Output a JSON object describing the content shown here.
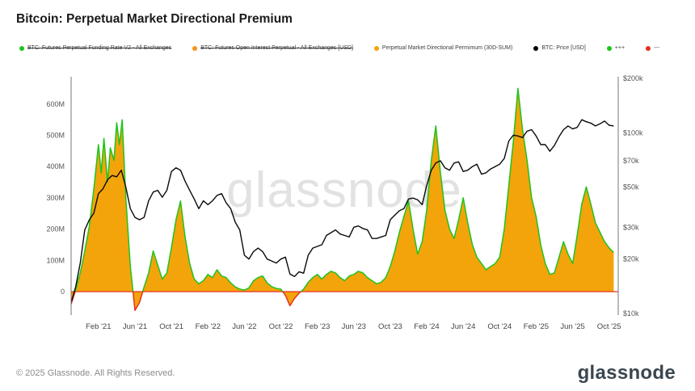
{
  "page": {
    "title": "Bitcoin: Perpetual Market Directional Premium",
    "watermark": "glassnode",
    "footer_copyright": "© 2025 Glassnode. All Rights Reserved.",
    "brand": "glassnode"
  },
  "legend": [
    {
      "label": "BTC: Futures Perpetual Funding Rate V2 - All Exchanges",
      "color": "#1ec31e",
      "strikethrough": true
    },
    {
      "label": "BTC: Futures Open Interest Perpetual - All Exchanges [USD]",
      "color": "#f7931a",
      "strikethrough": true
    },
    {
      "label": "Perpetual Market Directional Permimum (30D-SUM)",
      "color": "#f3a40a",
      "strikethrough": false
    },
    {
      "label": "BTC: Price [USD]",
      "color": "#000000",
      "strikethrough": false
    },
    {
      "label": "+++",
      "color": "#1ec31e",
      "strikethrough": false
    },
    {
      "label": "---",
      "color": "#e53020",
      "strikethrough": false
    }
  ],
  "chart_data": {
    "type": "area",
    "title": "Bitcoin: Perpetual Market Directional Premium",
    "x_unit": "months since Nov 2020",
    "x_range": [
      0,
      60
    ],
    "grid": false,
    "legend_position": "top",
    "zero_line_color": "#e53020",
    "left_axis": {
      "side": "left",
      "scale": "linear",
      "unit": "USD (millions)",
      "ticks": [
        "600M",
        "500M",
        "400M",
        "300M",
        "200M",
        "100M",
        "0"
      ],
      "tick_values": [
        600,
        500,
        400,
        300,
        200,
        100,
        0
      ],
      "range": [
        -75,
        687
      ]
    },
    "right_axis": {
      "side": "right",
      "scale": "log",
      "unit": "USD",
      "ticks": [
        "$200k",
        "$100k",
        "$70k",
        "$50k",
        "$30k",
        "$20k",
        "$10k"
      ],
      "tick_values": [
        200,
        100,
        70,
        50,
        30,
        20,
        10
      ],
      "range_k": [
        9.5,
        210
      ]
    },
    "x_ticks": [
      {
        "t": 3,
        "label": "Feb '21"
      },
      {
        "t": 7,
        "label": "Jun '21"
      },
      {
        "t": 11,
        "label": "Oct '21"
      },
      {
        "t": 15,
        "label": "Feb '22"
      },
      {
        "t": 19,
        "label": "Jun '22"
      },
      {
        "t": 23,
        "label": "Oct '22"
      },
      {
        "t": 27,
        "label": "Feb '23"
      },
      {
        "t": 31,
        "label": "Jun '23"
      },
      {
        "t": 35,
        "label": "Oct '23"
      },
      {
        "t": 39,
        "label": "Feb '24"
      },
      {
        "t": 43,
        "label": "Jun '24"
      },
      {
        "t": 47,
        "label": "Oct '24"
      },
      {
        "t": 51,
        "label": "Feb '25"
      },
      {
        "t": 55,
        "label": "Jun '25"
      },
      {
        "t": 59,
        "label": "Oct '25"
      }
    ],
    "series": [
      {
        "name": "Perpetual Market Directional Permimum (30D-SUM)",
        "axis": "left",
        "style": "area",
        "unit": "USD millions",
        "fill": "#f3a40a",
        "stroke_positive": "#1ec31e",
        "stroke_negative": "#e53020",
        "points": [
          [
            0,
            -40
          ],
          [
            0.5,
            5
          ],
          [
            1,
            60
          ],
          [
            1.5,
            130
          ],
          [
            2,
            210
          ],
          [
            2.5,
            330
          ],
          [
            3,
            470
          ],
          [
            3.3,
            380
          ],
          [
            3.6,
            490
          ],
          [
            4,
            350
          ],
          [
            4.3,
            460
          ],
          [
            4.7,
            420
          ],
          [
            5,
            540
          ],
          [
            5.3,
            470
          ],
          [
            5.6,
            550
          ],
          [
            6,
            300
          ],
          [
            6.5,
            80
          ],
          [
            7,
            -60
          ],
          [
            7.5,
            -35
          ],
          [
            8,
            15
          ],
          [
            8.5,
            60
          ],
          [
            9,
            130
          ],
          [
            9.5,
            85
          ],
          [
            10,
            40
          ],
          [
            10.5,
            60
          ],
          [
            11,
            140
          ],
          [
            11.5,
            230
          ],
          [
            12,
            290
          ],
          [
            12.5,
            175
          ],
          [
            13,
            90
          ],
          [
            13.5,
            40
          ],
          [
            14,
            25
          ],
          [
            14.5,
            35
          ],
          [
            15,
            55
          ],
          [
            15.5,
            45
          ],
          [
            16,
            70
          ],
          [
            16.5,
            50
          ],
          [
            17,
            45
          ],
          [
            17.5,
            28
          ],
          [
            18,
            15
          ],
          [
            18.5,
            8
          ],
          [
            19,
            5
          ],
          [
            19.5,
            12
          ],
          [
            20,
            35
          ],
          [
            20.5,
            45
          ],
          [
            21,
            50
          ],
          [
            21.5,
            28
          ],
          [
            22,
            16
          ],
          [
            22.5,
            10
          ],
          [
            23,
            8
          ],
          [
            23.5,
            -12
          ],
          [
            24,
            -45
          ],
          [
            24.5,
            -22
          ],
          [
            25,
            -5
          ],
          [
            25.5,
            8
          ],
          [
            26,
            30
          ],
          [
            26.5,
            45
          ],
          [
            27,
            55
          ],
          [
            27.5,
            40
          ],
          [
            28,
            55
          ],
          [
            28.5,
            65
          ],
          [
            29,
            60
          ],
          [
            29.5,
            45
          ],
          [
            30,
            35
          ],
          [
            30.5,
            50
          ],
          [
            31,
            55
          ],
          [
            31.5,
            65
          ],
          [
            32,
            60
          ],
          [
            32.5,
            45
          ],
          [
            33,
            35
          ],
          [
            33.5,
            25
          ],
          [
            34,
            30
          ],
          [
            34.5,
            45
          ],
          [
            35,
            80
          ],
          [
            35.5,
            130
          ],
          [
            36,
            190
          ],
          [
            36.5,
            240
          ],
          [
            37,
            290
          ],
          [
            37.5,
            200
          ],
          [
            38,
            120
          ],
          [
            38.5,
            160
          ],
          [
            39,
            260
          ],
          [
            39.5,
            420
          ],
          [
            40,
            530
          ],
          [
            40.5,
            380
          ],
          [
            41,
            260
          ],
          [
            41.5,
            200
          ],
          [
            42,
            170
          ],
          [
            42.5,
            230
          ],
          [
            43,
            300
          ],
          [
            43.5,
            220
          ],
          [
            44,
            150
          ],
          [
            44.5,
            110
          ],
          [
            45,
            90
          ],
          [
            45.5,
            70
          ],
          [
            46,
            80
          ],
          [
            46.5,
            90
          ],
          [
            47,
            110
          ],
          [
            47.5,
            200
          ],
          [
            48,
            340
          ],
          [
            48.5,
            480
          ],
          [
            49,
            650
          ],
          [
            49.5,
            520
          ],
          [
            50,
            420
          ],
          [
            50.5,
            300
          ],
          [
            51,
            240
          ],
          [
            51.5,
            150
          ],
          [
            52,
            90
          ],
          [
            52.5,
            55
          ],
          [
            53,
            60
          ],
          [
            53.5,
            110
          ],
          [
            54,
            160
          ],
          [
            54.5,
            120
          ],
          [
            55,
            90
          ],
          [
            55.5,
            180
          ],
          [
            56,
            280
          ],
          [
            56.5,
            335
          ],
          [
            57,
            280
          ],
          [
            57.5,
            220
          ],
          [
            58,
            190
          ],
          [
            58.5,
            160
          ],
          [
            59,
            140
          ],
          [
            59.5,
            125
          ]
        ]
      },
      {
        "name": "BTC: Price [USD]",
        "axis": "right",
        "style": "line",
        "unit": "USD thousands",
        "color": "#0a0a0a",
        "points": [
          [
            0,
            11.5
          ],
          [
            0.5,
            14
          ],
          [
            1,
            19
          ],
          [
            1.5,
            29
          ],
          [
            2,
            33
          ],
          [
            2.5,
            36
          ],
          [
            3,
            46
          ],
          [
            3.5,
            49
          ],
          [
            4,
            55
          ],
          [
            4.5,
            58
          ],
          [
            5,
            57
          ],
          [
            5.5,
            62
          ],
          [
            6,
            50
          ],
          [
            6.5,
            38
          ],
          [
            7,
            34
          ],
          [
            7.5,
            33
          ],
          [
            8,
            34
          ],
          [
            8.5,
            42
          ],
          [
            9,
            47
          ],
          [
            9.5,
            48
          ],
          [
            10,
            44
          ],
          [
            10.5,
            48
          ],
          [
            11,
            61
          ],
          [
            11.5,
            64
          ],
          [
            12,
            62
          ],
          [
            12.5,
            54
          ],
          [
            13,
            48
          ],
          [
            13.5,
            43
          ],
          [
            14,
            38
          ],
          [
            14.5,
            42
          ],
          [
            15,
            40
          ],
          [
            15.5,
            42
          ],
          [
            16,
            45
          ],
          [
            16.5,
            46
          ],
          [
            17,
            41
          ],
          [
            17.5,
            38
          ],
          [
            18,
            32
          ],
          [
            18.5,
            29
          ],
          [
            19,
            21
          ],
          [
            19.5,
            20
          ],
          [
            20,
            22
          ],
          [
            20.5,
            23
          ],
          [
            21,
            22
          ],
          [
            21.5,
            20
          ],
          [
            22,
            19.5
          ],
          [
            22.5,
            19
          ],
          [
            23,
            20
          ],
          [
            23.5,
            20.5
          ],
          [
            24,
            16.5
          ],
          [
            24.5,
            16
          ],
          [
            25,
            17
          ],
          [
            25.5,
            16.7
          ],
          [
            26,
            21
          ],
          [
            26.5,
            23
          ],
          [
            27,
            23.5
          ],
          [
            27.5,
            24
          ],
          [
            28,
            27
          ],
          [
            28.5,
            28
          ],
          [
            29,
            29
          ],
          [
            29.5,
            27.5
          ],
          [
            30,
            27
          ],
          [
            30.5,
            26.5
          ],
          [
            31,
            30
          ],
          [
            31.5,
            30.5
          ],
          [
            32,
            29.5
          ],
          [
            32.5,
            29
          ],
          [
            33,
            26
          ],
          [
            33.5,
            26
          ],
          [
            34,
            26.5
          ],
          [
            34.5,
            27
          ],
          [
            35,
            33
          ],
          [
            35.5,
            35
          ],
          [
            36,
            37
          ],
          [
            36.5,
            38
          ],
          [
            37,
            43
          ],
          [
            37.5,
            43.5
          ],
          [
            38,
            42.5
          ],
          [
            38.5,
            40
          ],
          [
            39,
            51
          ],
          [
            39.5,
            62
          ],
          [
            40,
            68
          ],
          [
            40.5,
            70
          ],
          [
            41,
            64
          ],
          [
            41.5,
            62
          ],
          [
            42,
            68
          ],
          [
            42.5,
            69
          ],
          [
            43,
            61
          ],
          [
            43.5,
            62
          ],
          [
            44,
            65
          ],
          [
            44.5,
            67
          ],
          [
            45,
            59
          ],
          [
            45.5,
            60
          ],
          [
            46,
            63
          ],
          [
            46.5,
            65
          ],
          [
            47,
            67
          ],
          [
            47.5,
            72
          ],
          [
            48,
            90
          ],
          [
            48.5,
            97
          ],
          [
            49,
            96
          ],
          [
            49.5,
            94
          ],
          [
            50,
            102
          ],
          [
            50.5,
            104
          ],
          [
            51,
            96
          ],
          [
            51.5,
            86
          ],
          [
            52,
            86
          ],
          [
            52.5,
            79
          ],
          [
            53,
            85
          ],
          [
            53.5,
            95
          ],
          [
            54,
            104
          ],
          [
            54.5,
            109
          ],
          [
            55,
            105
          ],
          [
            55.5,
            107
          ],
          [
            56,
            118
          ],
          [
            56.5,
            115
          ],
          [
            57,
            113
          ],
          [
            57.5,
            109
          ],
          [
            58,
            112
          ],
          [
            58.5,
            116
          ],
          [
            59,
            110
          ],
          [
            59.5,
            109
          ]
        ]
      }
    ]
  }
}
